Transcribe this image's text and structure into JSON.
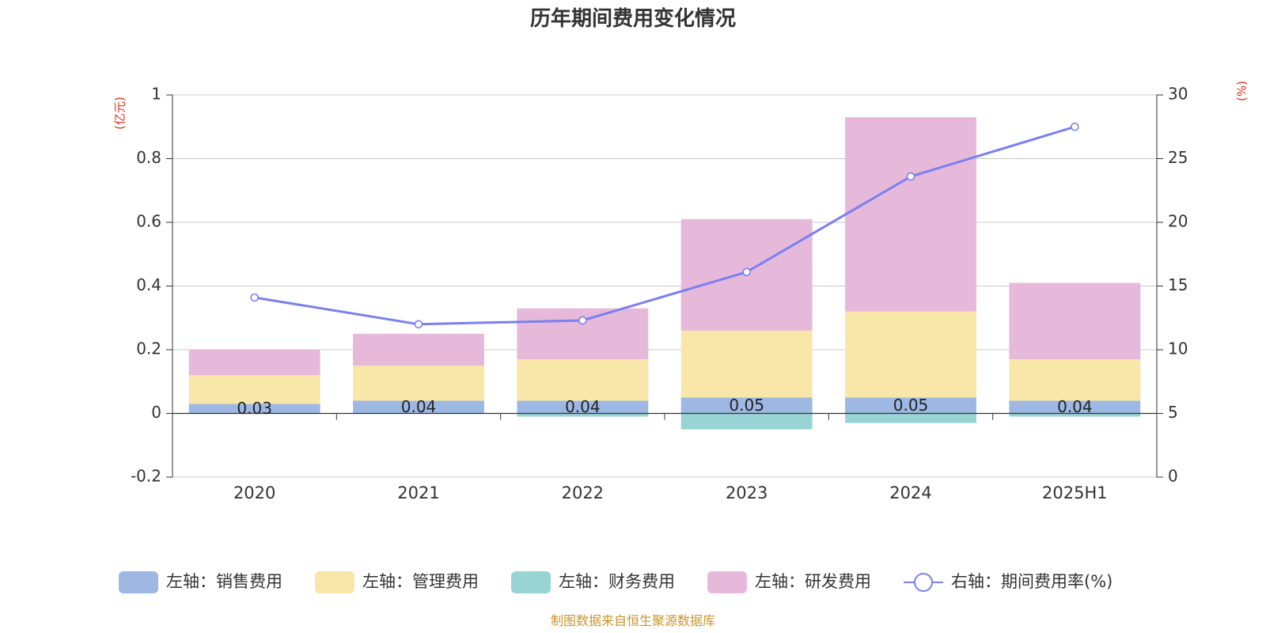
{
  "title": "历年期间费用变化情况",
  "source": "制图数据来自恒生聚源数据库",
  "colors": {
    "sales": "#9db8e3",
    "admin": "#f8e7a9",
    "finance": "#98d4d4",
    "rnd": "#e6b9da",
    "rate": "#7b7ff0"
  },
  "chart_data": {
    "type": "bar",
    "categories": [
      "2020",
      "2021",
      "2022",
      "2023",
      "2024",
      "2025H1"
    ],
    "y_left": {
      "unit": "(亿元)",
      "min": -0.2,
      "max": 1,
      "ticks": [
        "-0.2",
        "0",
        "0.2",
        "0.4",
        "0.6",
        "0.8",
        "1"
      ]
    },
    "y_right": {
      "unit": "(%)",
      "min": 0,
      "max": 30,
      "ticks": [
        "0",
        "5",
        "10",
        "15",
        "20",
        "25",
        "30"
      ]
    },
    "series": [
      {
        "key": "sales",
        "name": "左轴：销售费用",
        "values": [
          0.03,
          0.04,
          0.04,
          0.05,
          0.05,
          0.04
        ],
        "labels": [
          "0.03",
          "0.04",
          "0.04",
          "0.05",
          "0.05",
          "0.04"
        ]
      },
      {
        "key": "admin",
        "name": "左轴：管理费用",
        "values": [
          0.09,
          0.11,
          0.13,
          0.21,
          0.27,
          0.13
        ]
      },
      {
        "key": "finance",
        "name": "左轴：财务费用",
        "values": [
          0.0,
          0.0,
          -0.01,
          -0.05,
          -0.03,
          -0.01
        ]
      },
      {
        "key": "rnd",
        "name": "左轴：研发费用",
        "values": [
          0.08,
          0.1,
          0.16,
          0.35,
          0.61,
          0.24
        ]
      }
    ],
    "line": {
      "key": "rate",
      "name": "右轴：期间费用率(%)",
      "values": [
        14.1,
        12.0,
        12.3,
        16.1,
        23.6,
        27.5
      ]
    },
    "grid": true,
    "legend_position": "bottom"
  }
}
